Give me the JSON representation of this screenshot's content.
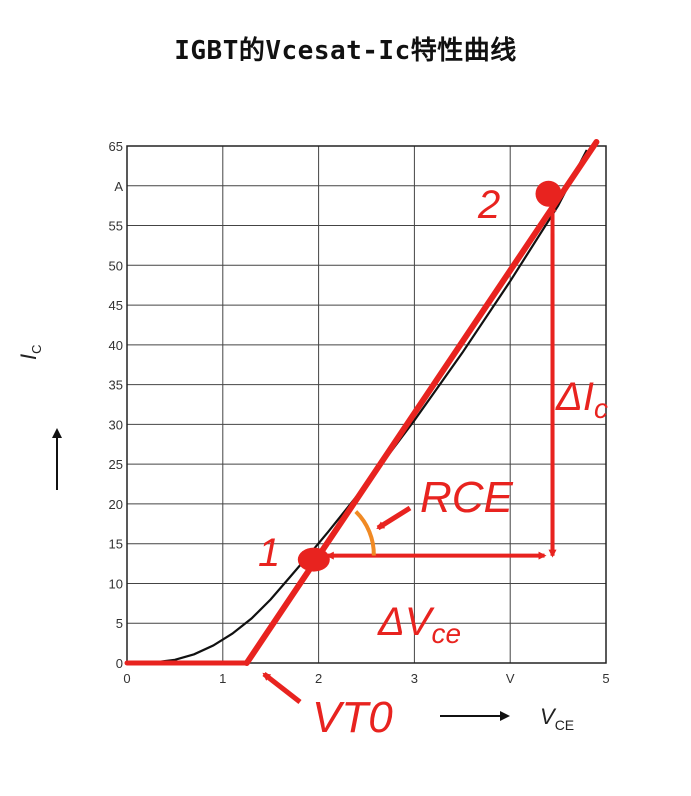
{
  "title": "IGBT的Vcesat-Ic特性曲线",
  "chart_data": {
    "type": "line",
    "xlim": [
      0,
      5
    ],
    "ylim": [
      0,
      65
    ],
    "x_ticks": [
      "0",
      "1",
      "2",
      "3",
      "V",
      "5"
    ],
    "y_ticks": [
      "0",
      "5",
      "10",
      "15",
      "20",
      "25",
      "30",
      "35",
      "40",
      "45",
      "50",
      "55",
      "A",
      "65"
    ],
    "grid": true,
    "ylabel_main": "I",
    "ylabel_sub": "C",
    "xlabel_main": "V",
    "xlabel_sub": "CE",
    "series": [
      {
        "x": [
          0,
          0.3,
          0.5,
          0.7,
          0.9,
          1.1,
          1.3,
          1.5,
          1.7,
          1.9,
          2.1,
          2.5,
          3.0,
          3.5,
          4.0,
          4.5,
          4.8
        ],
        "y": [
          0,
          0.1,
          0.4,
          1.1,
          2.2,
          3.7,
          5.6,
          8.0,
          10.8,
          13.6,
          16.5,
          22.5,
          30.5,
          39.0,
          48.0,
          57.5,
          64.5
        ]
      }
    ],
    "annotations": {
      "vt0_line": {
        "x": [
          0,
          1.25,
          1.25,
          4.9
        ],
        "y": [
          0,
          0,
          0,
          65
        ]
      },
      "point_1": {
        "label": "1",
        "x": 1.95,
        "y": 13
      },
      "point_2": {
        "label": "2",
        "x": 4.4,
        "y": 59
      },
      "rce_label": "RCE",
      "delta_ic_main": "ΔI",
      "delta_ic_sub": "c",
      "delta_vce_main": "ΔV",
      "delta_vce_sub": "ce",
      "vt0_label": "VT0"
    },
    "colors": {
      "curve": "#111111",
      "annotation": "#e8231f",
      "grid": "#444444"
    }
  }
}
